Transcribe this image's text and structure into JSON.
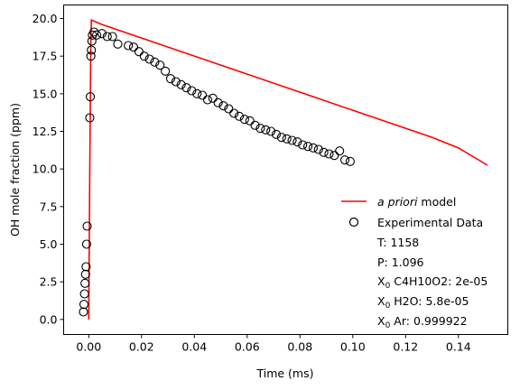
{
  "chart_data": {
    "type": "scatter",
    "xlabel": "Time (ms)",
    "ylabel": "OH mole fraction (ppm)",
    "xlim": [
      -0.0095,
      0.1587
    ],
    "ylim": [
      -1.0,
      20.9
    ],
    "x_ticks": [
      0.0,
      0.02,
      0.04,
      0.06,
      0.08,
      0.1,
      0.12,
      0.14
    ],
    "x_tick_labels": [
      "0.00",
      "0.02",
      "0.04",
      "0.06",
      "0.08",
      "0.10",
      "0.12",
      "0.14"
    ],
    "y_ticks": [
      0.0,
      2.5,
      5.0,
      7.5,
      10.0,
      12.5,
      15.0,
      17.5,
      20.0
    ],
    "y_tick_labels": [
      "0.0",
      "2.5",
      "5.0",
      "7.5",
      "10.0",
      "12.5",
      "15.0",
      "17.5",
      "20.0"
    ],
    "grid": false,
    "legend_placement": "lower-right",
    "legend": {
      "model_prefix": "a priori",
      "model_suffix": " model",
      "experimental": "Experimental Data",
      "info_lines": [
        {
          "id": "temperature",
          "text": "T: 1158"
        },
        {
          "id": "pressure",
          "text": "P: 1.096"
        },
        {
          "id": "x0-c4h10o2",
          "label": "X",
          "sub": "0",
          "text": " C4H10O2: 2e-05"
        },
        {
          "id": "x0-h2o",
          "label": "X",
          "sub": "0",
          "text": " H2O: 5.8e-05"
        },
        {
          "id": "x0-ar",
          "label": "X",
          "sub": "0",
          "text": " Ar: 0.999922"
        }
      ]
    },
    "series": [
      {
        "name": "a priori model",
        "kind": "line",
        "color": "#ff0000",
        "x": [
          0.0,
          0.0004,
          0.0008,
          0.001,
          0.005,
          0.01,
          0.02,
          0.03,
          0.04,
          0.05,
          0.06,
          0.07,
          0.08,
          0.09,
          0.1,
          0.11,
          0.12,
          0.13,
          0.14,
          0.151
        ],
        "y": [
          0.0,
          10.0,
          18.5,
          19.9,
          19.6,
          19.3,
          18.7,
          18.1,
          17.5,
          16.9,
          16.3,
          15.7,
          15.1,
          14.5,
          13.9,
          13.3,
          12.7,
          12.1,
          11.4,
          10.25
        ]
      },
      {
        "name": "Experimental Data",
        "kind": "scatter",
        "marker": "open-circle",
        "color": "#000000",
        "x": [
          -0.002,
          -0.0018,
          -0.0016,
          -0.0014,
          -0.0012,
          -0.001,
          -0.0008,
          -0.0006,
          0.0004,
          0.0006,
          0.0008,
          0.001,
          0.0012,
          0.0014,
          0.002,
          0.003,
          0.005,
          0.007,
          0.009,
          0.011,
          0.015,
          0.017,
          0.019,
          0.021,
          0.023,
          0.025,
          0.027,
          0.029,
          0.031,
          0.033,
          0.035,
          0.037,
          0.039,
          0.041,
          0.043,
          0.045,
          0.047,
          0.049,
          0.051,
          0.053,
          0.055,
          0.057,
          0.059,
          0.061,
          0.063,
          0.065,
          0.067,
          0.069,
          0.071,
          0.073,
          0.075,
          0.077,
          0.079,
          0.081,
          0.083,
          0.085,
          0.087,
          0.089,
          0.091,
          0.093,
          0.095,
          0.097,
          0.099
        ],
        "y": [
          0.5,
          1.0,
          1.7,
          2.4,
          3.0,
          3.5,
          5.0,
          6.2,
          13.4,
          14.8,
          17.5,
          17.9,
          18.5,
          18.9,
          19.1,
          18.9,
          19.0,
          18.8,
          18.8,
          18.3,
          18.2,
          18.1,
          17.8,
          17.5,
          17.3,
          17.1,
          16.9,
          16.5,
          16.0,
          15.8,
          15.6,
          15.4,
          15.2,
          15.0,
          14.9,
          14.6,
          14.7,
          14.4,
          14.2,
          14.0,
          13.7,
          13.5,
          13.3,
          13.2,
          12.9,
          12.7,
          12.6,
          12.5,
          12.3,
          12.1,
          12.0,
          11.9,
          11.8,
          11.6,
          11.5,
          11.4,
          11.3,
          11.1,
          11.0,
          10.9,
          11.2,
          10.6,
          10.5
        ]
      }
    ]
  }
}
